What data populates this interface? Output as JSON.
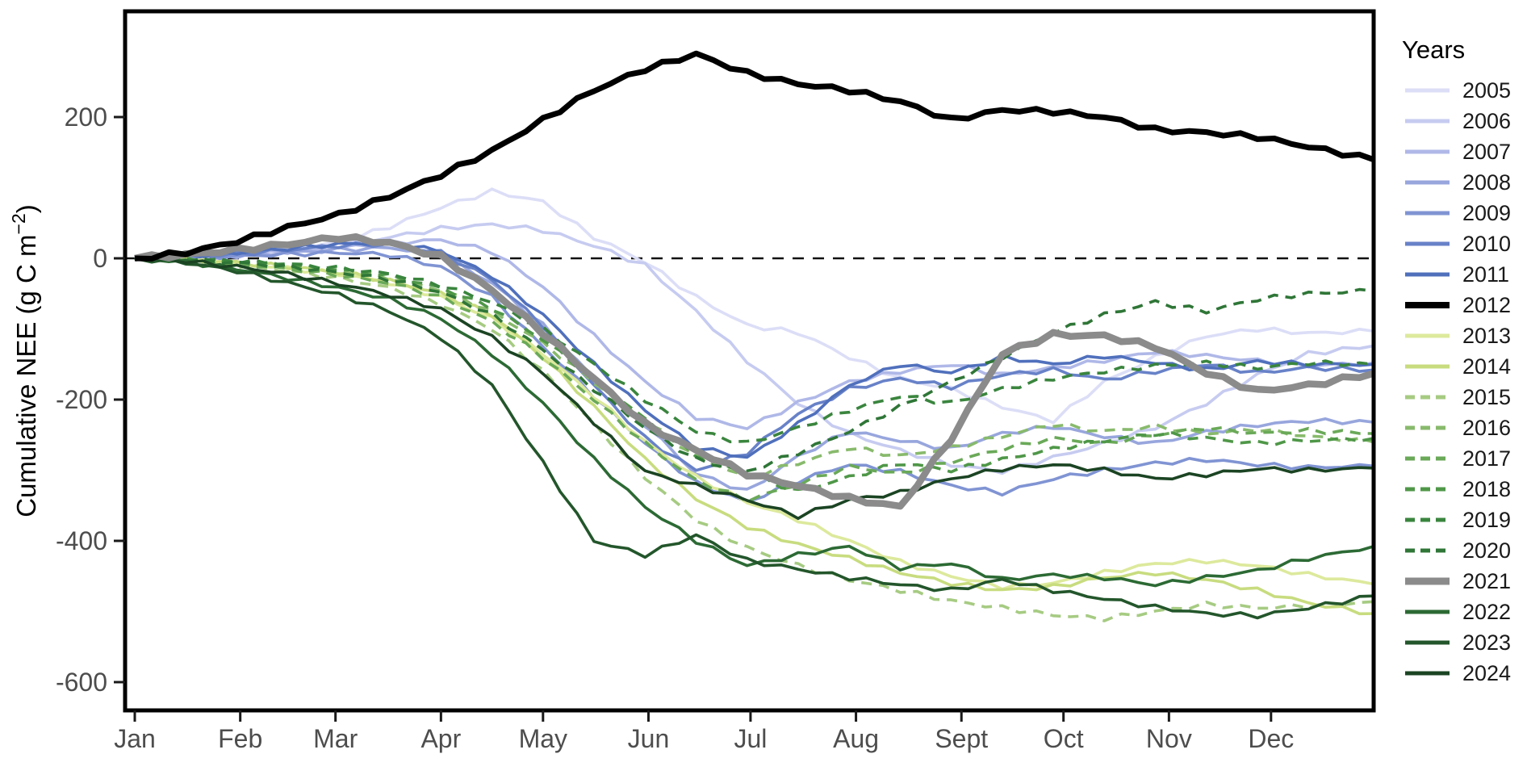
{
  "chart_data": {
    "type": "line",
    "title": "",
    "xlabel": "",
    "ylabel_main": "Cumulative NEE (g C m",
    "ylabel_sup": "−2",
    "ylabel_close": ")",
    "ylim": [
      -640,
      350
    ],
    "yticks": [
      200,
      0,
      -200,
      -400,
      -600
    ],
    "ytick_labels": [
      "200",
      "0",
      "-200",
      "-400",
      "-600"
    ],
    "month_labels": [
      "Jan",
      "Feb",
      "Mar",
      "Apr",
      "May",
      "Jun",
      "Jul",
      "Aug",
      "Sept",
      "Oct",
      "Nov",
      "Dec"
    ],
    "month_start_days": [
      0,
      31,
      59,
      90,
      120,
      151,
      181,
      212,
      243,
      273,
      304,
      334
    ],
    "zero_reference_line": 0,
    "grid": false,
    "legend_title": "Years",
    "legend_position": "right",
    "axis_text_color": "#4d4d4d",
    "axis_line_color": "#000000",
    "x_days": [
      0,
      15,
      30,
      45,
      60,
      75,
      90,
      105,
      120,
      135,
      150,
      165,
      180,
      195,
      210,
      225,
      240,
      255,
      270,
      285,
      300,
      315,
      330,
      345,
      364
    ],
    "series": [
      {
        "name": "2005",
        "color": "#dcdef7",
        "dashed": false,
        "width": 3.6,
        "values": [
          0,
          3,
          6,
          12,
          22,
          45,
          72,
          95,
          80,
          30,
          -5,
          -55,
          -95,
          -105,
          -140,
          -170,
          -185,
          -210,
          -230,
          -175,
          -140,
          -110,
          -100,
          -106,
          -103
        ]
      },
      {
        "name": "2006",
        "color": "#c6cbf0",
        "dashed": false,
        "width": 3.6,
        "values": [
          0,
          2,
          6,
          10,
          18,
          30,
          42,
          48,
          40,
          18,
          -10,
          -75,
          -145,
          -205,
          -248,
          -272,
          -292,
          -302,
          -282,
          -262,
          -240,
          -205,
          -165,
          -135,
          -124
        ]
      },
      {
        "name": "2007",
        "color": "#afb8e7",
        "dashed": false,
        "width": 3.6,
        "values": [
          0,
          2,
          5,
          10,
          15,
          22,
          26,
          10,
          -40,
          -110,
          -175,
          -225,
          -240,
          -205,
          -175,
          -160,
          -150,
          -165,
          -155,
          -145,
          -132,
          -138,
          -145,
          -152,
          -148
        ]
      },
      {
        "name": "2008",
        "color": "#98a6dd",
        "dashed": false,
        "width": 3.6,
        "values": [
          0,
          1,
          4,
          8,
          12,
          15,
          5,
          -35,
          -95,
          -170,
          -235,
          -305,
          -330,
          -280,
          -245,
          -258,
          -270,
          -248,
          -238,
          -252,
          -262,
          -246,
          -236,
          -230,
          -232
        ]
      },
      {
        "name": "2009",
        "color": "#8094d3",
        "dashed": false,
        "width": 3.6,
        "values": [
          0,
          1,
          3,
          6,
          8,
          5,
          -12,
          -55,
          -125,
          -195,
          -262,
          -318,
          -345,
          -315,
          -292,
          -302,
          -322,
          -332,
          -312,
          -300,
          -290,
          -285,
          -292,
          -296,
          -294
        ]
      },
      {
        "name": "2010",
        "color": "#6882c8",
        "dashed": false,
        "width": 3.6,
        "values": [
          0,
          2,
          6,
          12,
          18,
          20,
          8,
          -30,
          -95,
          -180,
          -255,
          -300,
          -275,
          -220,
          -185,
          -170,
          -182,
          -165,
          -158,
          -172,
          -160,
          -150,
          -162,
          -155,
          -158
        ]
      },
      {
        "name": "2011",
        "color": "#5070bc",
        "dashed": false,
        "width": 3.6,
        "values": [
          0,
          3,
          8,
          14,
          20,
          22,
          10,
          -25,
          -80,
          -150,
          -215,
          -268,
          -282,
          -235,
          -180,
          -150,
          -162,
          -140,
          -150,
          -138,
          -148,
          -158,
          -146,
          -150,
          -150
        ]
      },
      {
        "name": "2012",
        "color": "#000000",
        "dashed": false,
        "width": 7,
        "values": [
          0,
          8,
          24,
          44,
          62,
          88,
          118,
          152,
          196,
          238,
          268,
          289,
          262,
          247,
          238,
          222,
          196,
          210,
          208,
          200,
          182,
          178,
          172,
          158,
          140
        ]
      },
      {
        "name": "2013",
        "color": "#dde99c",
        "dashed": false,
        "width": 3.6,
        "values": [
          0,
          -3,
          -8,
          -14,
          -22,
          -35,
          -55,
          -85,
          -135,
          -195,
          -260,
          -310,
          -345,
          -370,
          -400,
          -430,
          -450,
          -465,
          -460,
          -445,
          -432,
          -428,
          -435,
          -448,
          -461
        ]
      },
      {
        "name": "2014",
        "color": "#c8dc7f",
        "dashed": false,
        "width": 3.6,
        "values": [
          0,
          -2,
          -6,
          -12,
          -20,
          -32,
          -50,
          -80,
          -140,
          -210,
          -285,
          -340,
          -380,
          -405,
          -425,
          -445,
          -460,
          -470,
          -465,
          -452,
          -445,
          -455,
          -470,
          -488,
          -503
        ]
      },
      {
        "name": "2015",
        "color": "#a6cb82",
        "dashed": true,
        "width": 3.6,
        "values": [
          0,
          -4,
          -10,
          -18,
          -28,
          -42,
          -65,
          -100,
          -160,
          -235,
          -310,
          -370,
          -410,
          -435,
          -455,
          -470,
          -485,
          -495,
          -505,
          -510,
          -500,
          -490,
          -495,
          -492,
          -486
        ]
      },
      {
        "name": "2016",
        "color": "#88ba6c",
        "dashed": true,
        "width": 3.6,
        "values": [
          0,
          -2,
          -6,
          -12,
          -18,
          -28,
          -45,
          -75,
          -120,
          -175,
          -230,
          -280,
          -310,
          -290,
          -268,
          -280,
          -268,
          -252,
          -235,
          -245,
          -238,
          -248,
          -242,
          -252,
          -260
        ]
      },
      {
        "name": "2017",
        "color": "#6aa958",
        "dashed": true,
        "width": 3.6,
        "values": [
          0,
          -3,
          -8,
          -15,
          -24,
          -35,
          -55,
          -90,
          -140,
          -200,
          -262,
          -315,
          -342,
          -320,
          -295,
          -305,
          -288,
          -270,
          -255,
          -262,
          -250,
          -240,
          -248,
          -244,
          -248
        ]
      },
      {
        "name": "2018",
        "color": "#4f9748",
        "dashed": true,
        "width": 3.6,
        "values": [
          0,
          -2,
          -5,
          -10,
          -16,
          -25,
          -42,
          -70,
          -115,
          -170,
          -228,
          -278,
          -305,
          -330,
          -310,
          -290,
          -300,
          -285,
          -270,
          -258,
          -248,
          -255,
          -262,
          -258,
          -255
        ]
      },
      {
        "name": "2019",
        "color": "#3a853e",
        "dashed": true,
        "width": 3.6,
        "values": [
          0,
          -1,
          -4,
          -8,
          -14,
          -22,
          -38,
          -62,
          -100,
          -150,
          -200,
          -245,
          -262,
          -240,
          -215,
          -195,
          -205,
          -185,
          -170,
          -160,
          -152,
          -148,
          -155,
          -148,
          -150
        ]
      },
      {
        "name": "2020",
        "color": "#2f7637",
        "dashed": true,
        "width": 3.6,
        "values": [
          0,
          -2,
          -6,
          -12,
          -20,
          -30,
          -48,
          -80,
          -130,
          -185,
          -240,
          -285,
          -302,
          -275,
          -245,
          -210,
          -175,
          -140,
          -105,
          -80,
          -62,
          -75,
          -58,
          -50,
          -46
        ]
      },
      {
        "name": "2021",
        "color": "#8b8b8b",
        "dashed": false,
        "width": 8.5,
        "values": [
          0,
          5,
          12,
          20,
          30,
          22,
          2,
          -45,
          -105,
          -170,
          -235,
          -272,
          -305,
          -322,
          -340,
          -352,
          -255,
          -135,
          -108,
          -110,
          -125,
          -162,
          -188,
          -180,
          -163
        ]
      },
      {
        "name": "2022",
        "color": "#2c6a34",
        "dashed": false,
        "width": 3.6,
        "values": [
          0,
          -5,
          -15,
          -28,
          -42,
          -58,
          -85,
          -135,
          -205,
          -285,
          -352,
          -400,
          -435,
          -420,
          -408,
          -438,
          -432,
          -455,
          -448,
          -452,
          -462,
          -452,
          -442,
          -425,
          -408
        ]
      },
      {
        "name": "2023",
        "color": "#23562b",
        "dashed": false,
        "width": 3.6,
        "values": [
          0,
          -6,
          -18,
          -35,
          -52,
          -75,
          -112,
          -180,
          -290,
          -400,
          -420,
          -392,
          -428,
          -440,
          -452,
          -462,
          -470,
          -455,
          -470,
          -482,
          -494,
          -503,
          -506,
          -495,
          -478
        ]
      },
      {
        "name": "2024",
        "color": "#1b4423",
        "dashed": false,
        "width": 3.6,
        "values": [
          0,
          -4,
          -12,
          -22,
          -36,
          -52,
          -72,
          -112,
          -162,
          -232,
          -302,
          -322,
          -342,
          -365,
          -342,
          -332,
          -312,
          -298,
          -292,
          -300,
          -312,
          -306,
          -298,
          -300,
          -297
        ]
      }
    ]
  }
}
